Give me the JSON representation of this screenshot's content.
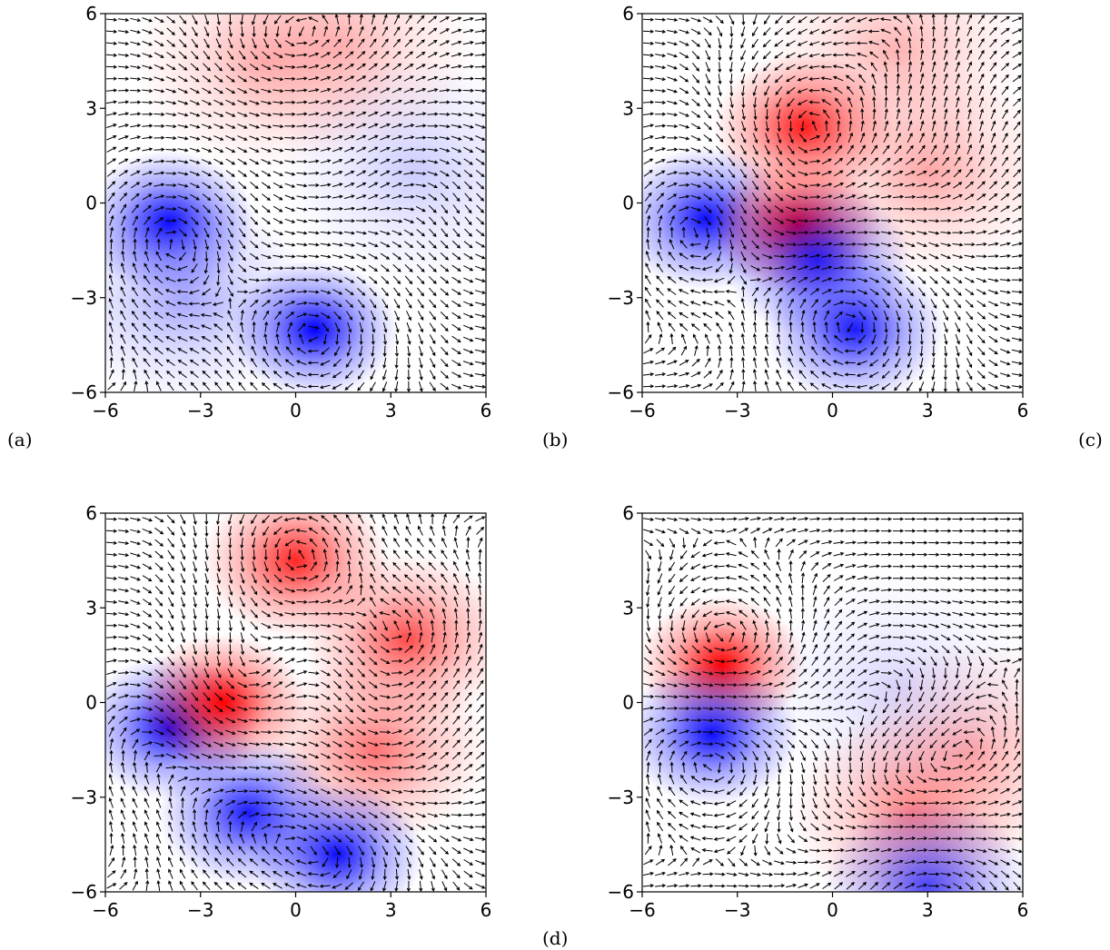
{
  "figure": {
    "captions": [
      "(a)",
      "(b)",
      "(c)",
      "(d)"
    ],
    "colors": {
      "positive": "#ff0000",
      "negative": "#0000ff",
      "neutral": "#ffffff",
      "arrow": "#000000"
    }
  },
  "chart_data": [
    {
      "type": "heatmap",
      "overlay": "quiver",
      "xlim": [
        -6,
        6
      ],
      "ylim": [
        -6,
        6
      ],
      "xticks": [
        "−6",
        "−3",
        "0",
        "3",
        "6"
      ],
      "yticks": [
        "−6",
        "−3",
        "0",
        "3",
        "6"
      ],
      "colormap": "bwr",
      "grid": false,
      "features": [
        {
          "x": -4.0,
          "y": -0.6,
          "sign": -1,
          "strength": 0.95
        },
        {
          "x": 0.6,
          "y": -4.0,
          "sign": -1,
          "strength": 1.0
        },
        {
          "x": -1.0,
          "y": 4.5,
          "sign": 1,
          "strength": 0.28
        },
        {
          "x": 1.5,
          "y": 5.0,
          "sign": 1,
          "strength": 0.25
        },
        {
          "x": 3.8,
          "y": 1.0,
          "sign": -1,
          "strength": 0.2
        },
        {
          "x": -3.5,
          "y": -3.0,
          "sign": -1,
          "strength": 0.35
        }
      ]
    },
    {
      "type": "heatmap",
      "overlay": "quiver",
      "xlim": [
        -6,
        6
      ],
      "ylim": [
        -6,
        6
      ],
      "xticks": [
        "−6",
        "−3",
        "0",
        "3",
        "6"
      ],
      "yticks": [
        "−6",
        "−3",
        "0",
        "3",
        "6"
      ],
      "colormap": "bwr",
      "grid": false,
      "features": [
        {
          "x": -4.0,
          "y": -0.5,
          "sign": -1,
          "strength": 0.95
        },
        {
          "x": -1.1,
          "y": -0.7,
          "sign": 1,
          "strength": 1.0
        },
        {
          "x": -0.9,
          "y": 2.4,
          "sign": 1,
          "strength": 0.9
        },
        {
          "x": 0.7,
          "y": -4.0,
          "sign": -1,
          "strength": 0.9
        },
        {
          "x": -0.5,
          "y": -1.8,
          "sign": -1,
          "strength": 0.85
        },
        {
          "x": 2.0,
          "y": 4.8,
          "sign": 1,
          "strength": 0.3
        },
        {
          "x": 3.0,
          "y": 1.0,
          "sign": 1,
          "strength": 0.35
        }
      ]
    },
    {
      "type": "heatmap",
      "overlay": "quiver",
      "xlim": [
        -6,
        6
      ],
      "ylim": [
        -6,
        6
      ],
      "xticks": [
        "−6",
        "−3",
        "0",
        "3",
        "6"
      ],
      "yticks": [
        "−6",
        "−3",
        "0",
        "3",
        "6"
      ],
      "colormap": "bwr",
      "grid": false,
      "features": [
        {
          "x": -4.0,
          "y": -0.8,
          "sign": -1,
          "strength": 0.95
        },
        {
          "x": -2.3,
          "y": 0.0,
          "sign": 1,
          "strength": 1.0
        },
        {
          "x": 0.0,
          "y": 4.5,
          "sign": 1,
          "strength": 0.85
        },
        {
          "x": 3.5,
          "y": 2.0,
          "sign": 1,
          "strength": 0.7
        },
        {
          "x": 2.5,
          "y": -1.5,
          "sign": 1,
          "strength": 0.55
        },
        {
          "x": -1.5,
          "y": -3.5,
          "sign": -1,
          "strength": 0.9
        },
        {
          "x": 1.3,
          "y": -4.8,
          "sign": -1,
          "strength": 0.95
        }
      ]
    },
    {
      "type": "heatmap",
      "overlay": "quiver",
      "xlim": [
        -6,
        6
      ],
      "ylim": [
        -6,
        6
      ],
      "xticks": [
        "−6",
        "−3",
        "0",
        "3",
        "6"
      ],
      "yticks": [
        "−6",
        "−3",
        "0",
        "3",
        "6"
      ],
      "colormap": "bwr",
      "grid": false,
      "features": [
        {
          "x": -3.5,
          "y": 1.2,
          "sign": 1,
          "strength": 1.0
        },
        {
          "x": -3.8,
          "y": -1.0,
          "sign": -1,
          "strength": 0.95
        },
        {
          "x": 2.5,
          "y": -3.5,
          "sign": 1,
          "strength": 0.45
        },
        {
          "x": 4.5,
          "y": -1.5,
          "sign": 1,
          "strength": 0.3
        },
        {
          "x": 3.0,
          "y": -5.8,
          "sign": -1,
          "strength": 0.7
        },
        {
          "x": 2.0,
          "y": 0.5,
          "sign": -1,
          "strength": 0.15
        }
      ]
    }
  ]
}
